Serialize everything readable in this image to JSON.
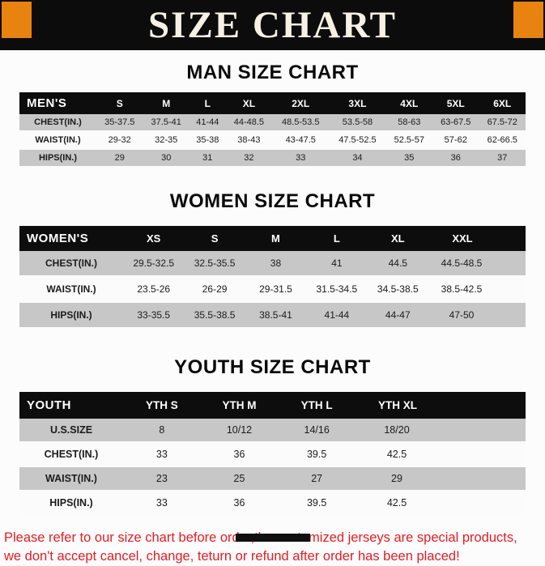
{
  "title": "SIZE CHART",
  "sections": [
    {
      "heading": "MAN SIZE CHART",
      "table": {
        "header": [
          "MEN'S",
          "S",
          "M",
          "L",
          "XL",
          "2XL",
          "3XL",
          "4XL",
          "5XL",
          "6XL"
        ],
        "rows": [
          [
            "CHEST(IN.)",
            "35-37.5",
            "37.5-41",
            "41-44",
            "44-48.5",
            "48.5-53.5",
            "53.5-58",
            "58-63",
            "63-67.5",
            "67.5-72"
          ],
          [
            "WAIST(IN.)",
            "29-32",
            "32-35",
            "35-38",
            "38-43",
            "43-47.5",
            "47.5-52.5",
            "52.5-57",
            "57-62",
            "62-66.5"
          ],
          [
            "HIPS(IN.)",
            "29",
            "30",
            "31",
            "32",
            "33",
            "34",
            "35",
            "36",
            "37"
          ]
        ]
      }
    },
    {
      "heading": "WOMEN SIZE CHART",
      "table": {
        "header": [
          "WOMEN'S",
          "XS",
          "S",
          "M",
          "L",
          "XL",
          "XXL"
        ],
        "rows": [
          [
            "CHEST(IN.)",
            "29.5-32.5",
            "32.5-35.5",
            "38",
            "41",
            "44.5",
            "44.5-48.5"
          ],
          [
            "WAIST(IN.)",
            "23.5-26",
            "26-29",
            "29-31.5",
            "31.5-34.5",
            "34.5-38.5",
            "38.5-42.5"
          ],
          [
            "HIPS(IN.)",
            "33-35.5",
            "35.5-38.5",
            "38.5-41",
            "41-44",
            "44-47",
            "47-50"
          ]
        ]
      }
    },
    {
      "heading": "YOUTH SIZE CHART",
      "table": {
        "header": [
          "YOUTH",
          "YTH S",
          "YTH M",
          "YTH L",
          "YTH XL"
        ],
        "rows": [
          [
            "U.S.SIZE",
            "8",
            "10/12",
            "14/16",
            "18/20"
          ],
          [
            "CHEST(IN.)",
            "33",
            "36",
            "39.5",
            "42.5"
          ],
          [
            "WAIST(IN.)",
            "23",
            "25",
            "27",
            "29"
          ],
          [
            "HIPS(IN.)",
            "33",
            "36",
            "39.5",
            "42.5"
          ]
        ]
      }
    }
  ],
  "footer": {
    "line1": "Please refer to our size chart before order,the customized jerseys are special products,",
    "line2": "we don't accept cancel, change, teturn or refund after order has been placed!"
  },
  "colors": {
    "banner_bg": "#0c0c0c",
    "banner_text": "#f7f1e4",
    "accent_orange": "#e8830f",
    "table_header_bg": "#0d0d0d",
    "table_header_text": "#ffffff",
    "stripe_gray": "#c7c7c7",
    "footer_red": "#e51c23"
  }
}
